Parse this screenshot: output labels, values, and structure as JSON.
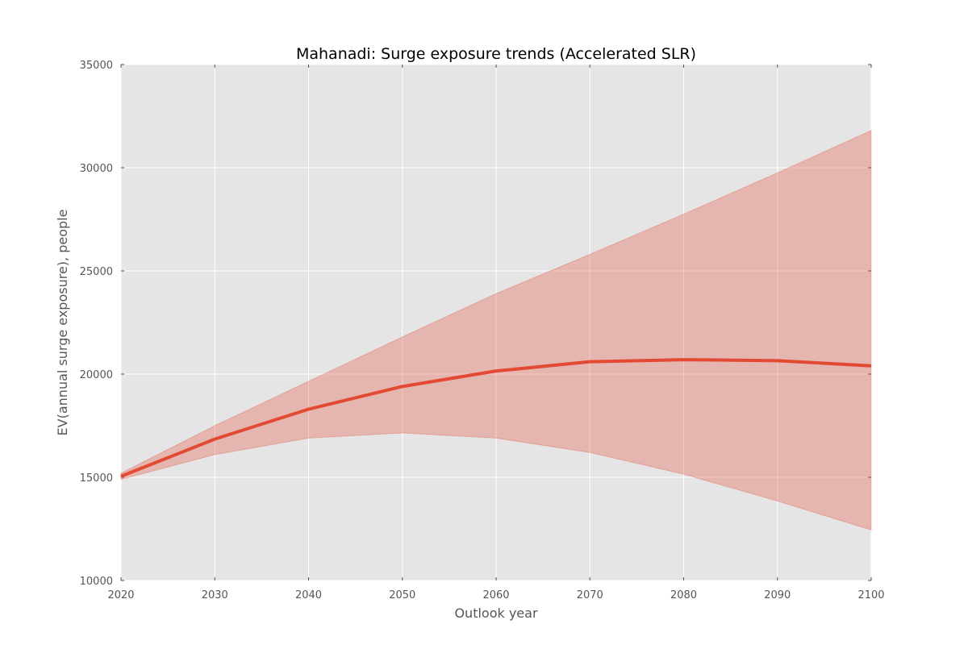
{
  "chart_data": {
    "type": "line",
    "title": "Mahanadi: Surge exposure trends (Accelerated SLR)",
    "xlabel": "Outlook year",
    "ylabel": "EV(annual surge exposure), people",
    "xlim": [
      2020,
      2100
    ],
    "ylim": [
      10000,
      35000
    ],
    "x_ticks": [
      "2020",
      "2030",
      "2040",
      "2050",
      "2060",
      "2070",
      "2080",
      "2090",
      "2100"
    ],
    "y_ticks": [
      "10000",
      "15000",
      "20000",
      "25000",
      "30000",
      "35000"
    ],
    "grid": true,
    "x": [
      2020,
      2030,
      2040,
      2050,
      2060,
      2070,
      2080,
      2090,
      2100
    ],
    "series": [
      {
        "values": [
          15050,
          16850,
          18300,
          19400,
          20150,
          20600,
          20700,
          20650,
          20400
        ],
        "upper": [
          15200,
          17500,
          19650,
          21800,
          23900,
          25800,
          27750,
          29750,
          31800
        ],
        "lower": [
          14900,
          16100,
          16900,
          17150,
          16900,
          16200,
          15150,
          13850,
          12450
        ]
      }
    ],
    "colors": {
      "line": "#E24A33",
      "band": "#E24A33",
      "plot_background": "#E5E5E5",
      "grid": "#FFFFFF"
    }
  }
}
